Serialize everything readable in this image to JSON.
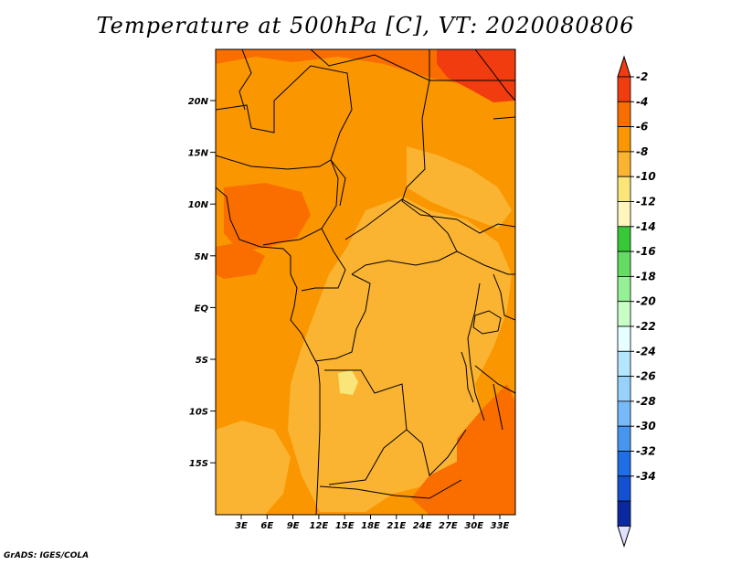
{
  "title": "Temperature at 500hPa [C], VT: 2020080806",
  "credit": "GrADS: IGES/COLA",
  "map": {
    "lat_ticks": [
      "20N",
      "15N",
      "10N",
      "5N",
      "EQ",
      "5S",
      "10S",
      "15S"
    ],
    "lon_ticks": [
      "3E",
      "6E",
      "9E",
      "12E",
      "15E",
      "18E",
      "21E",
      "24E",
      "27E",
      "30E",
      "33E"
    ]
  },
  "colorbar": {
    "labels": [
      "-2",
      "-4",
      "-6",
      "-8",
      "-10",
      "-12",
      "-14",
      "-16",
      "-18",
      "-20",
      "-22",
      "-24",
      "-26",
      "-28",
      "-30",
      "-32",
      "-34"
    ],
    "colors": [
      "#f03c0f",
      "#fa6e00",
      "#fa9600",
      "#fab432",
      "#fae678",
      "#fff5be",
      "#37c837",
      "#64dc64",
      "#96f096",
      "#c8ffc8",
      "#e6ffff",
      "#b4e6ff",
      "#96d2fa",
      "#78b9fa",
      "#4696f0",
      "#1e6ee6",
      "#1450d2",
      "#0a28a0",
      "#14146e"
    ],
    "top_color": "#f03c0f",
    "bottom_color": "#e1e1ff"
  }
}
